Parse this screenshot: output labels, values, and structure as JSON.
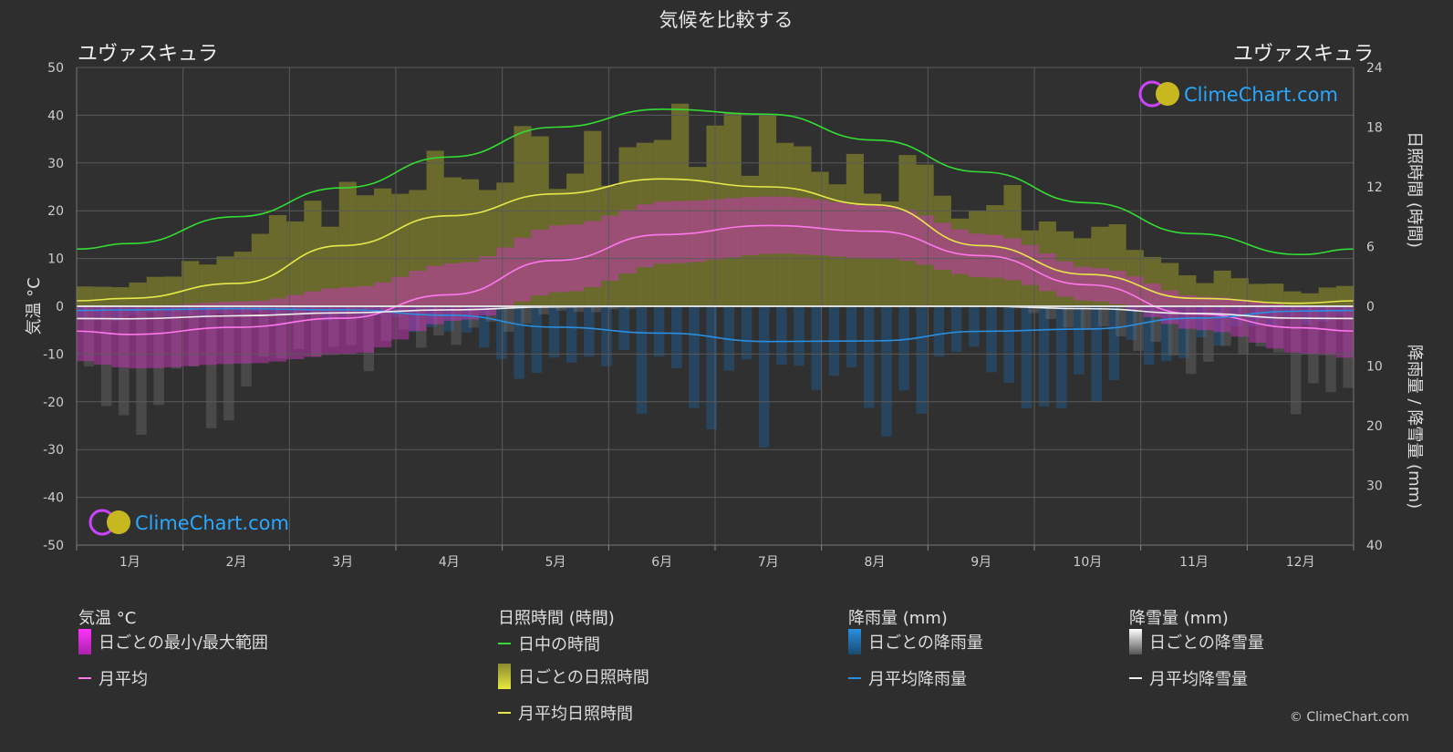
{
  "title": "気候を比較する",
  "location_left": "ユヴァスキュラ",
  "location_right": "ユヴァスキュラ",
  "brand": "ClimeChart.com",
  "copyright": "© ClimeChart.com",
  "colors": {
    "background": "#2e2e2e",
    "daylight": "#33dd33",
    "sunshine_line": "#e8e84a",
    "sunshine_fill": "#9a9a2a",
    "temp_line": "#ff77ee",
    "temp_range": "#cc33bb",
    "rain_line": "#2a8fe0",
    "rain_bar": "#1f5f9a",
    "snow_line": "#eeeeee",
    "snow_bar": "#777777",
    "brand": "#2aa8ff"
  },
  "chart_data": {
    "type": "line",
    "months": [
      "1月",
      "2月",
      "3月",
      "4月",
      "5月",
      "6月",
      "7月",
      "8月",
      "9月",
      "10月",
      "11月",
      "12月"
    ],
    "y_left": {
      "label": "気温 °C",
      "ylim": [
        -50,
        50
      ],
      "ticks": [
        50,
        40,
        30,
        20,
        10,
        0,
        -10,
        -20,
        -30,
        -40,
        -50
      ]
    },
    "y_right_top": {
      "label": "日照時間 (時間)",
      "ylim": [
        0,
        24
      ],
      "ticks": [
        24,
        18,
        12,
        6,
        0
      ]
    },
    "y_right_bottom": {
      "label": "降雨量 / 降雪量 (mm)",
      "ylim": [
        0,
        40
      ],
      "ticks": [
        0,
        10,
        20,
        30,
        40
      ]
    },
    "grid": true,
    "series": [
      {
        "name": "日中の時間",
        "unit": "hours",
        "values": [
          6.3,
          9.0,
          11.9,
          15.0,
          18.0,
          19.8,
          19.3,
          16.7,
          13.5,
          10.4,
          7.3,
          5.2
        ]
      },
      {
        "name": "月平均日照時間",
        "unit": "hours",
        "values": [
          0.8,
          2.3,
          6.1,
          9.1,
          11.3,
          12.8,
          12.0,
          10.2,
          6.1,
          3.2,
          0.8,
          0.3
        ]
      },
      {
        "name": "日ごとの日照時間",
        "unit": "hours",
        "values": [
          2.5,
          6.5,
          10.5,
          13.0,
          15.5,
          17.0,
          16.5,
          14.0,
          10.5,
          7.0,
          3.0,
          1.5
        ]
      },
      {
        "name": "月平均",
        "unit": "°C",
        "values": [
          -5.9,
          -4.4,
          -2.5,
          2.4,
          9.6,
          15.0,
          16.9,
          15.7,
          10.6,
          4.5,
          -1.6,
          -4.5
        ]
      },
      {
        "name": "日ごとの最小/最大範囲",
        "unit": "°C",
        "min": [
          -13,
          -12,
          -10,
          -3,
          3,
          9,
          11,
          10,
          6,
          1,
          -5,
          -10
        ],
        "max": [
          0,
          1,
          4,
          9,
          17,
          22,
          23,
          21,
          15,
          8,
          2,
          0
        ]
      },
      {
        "name": "月平均降雨量",
        "unit": "mm",
        "values": [
          0.6,
          0.4,
          0.6,
          1.5,
          3.5,
          4.5,
          5.9,
          5.8,
          4.2,
          3.8,
          2.0,
          0.8
        ]
      },
      {
        "name": "月平均降雪量",
        "unit": "mm",
        "values": [
          2.1,
          1.6,
          1.1,
          0.6,
          0.1,
          0.0,
          0.0,
          0.0,
          0.0,
          0.4,
          1.2,
          2.0
        ]
      }
    ]
  },
  "legend": {
    "temp_head": "気温 °C",
    "temp_range": "日ごとの最小/最大範囲",
    "temp_avg": "月平均",
    "sun_head": "日照時間 (時間)",
    "daylight": "日中の時間",
    "sun_daily": "日ごとの日照時間",
    "sun_avg": "月平均日照時間",
    "rain_head": "降雨量 (mm)",
    "rain_daily": "日ごとの降雨量",
    "rain_avg": "月平均降雨量",
    "snow_head": "降雪量 (mm)",
    "snow_daily": "日ごとの降雪量",
    "snow_avg": "月平均降雪量"
  }
}
